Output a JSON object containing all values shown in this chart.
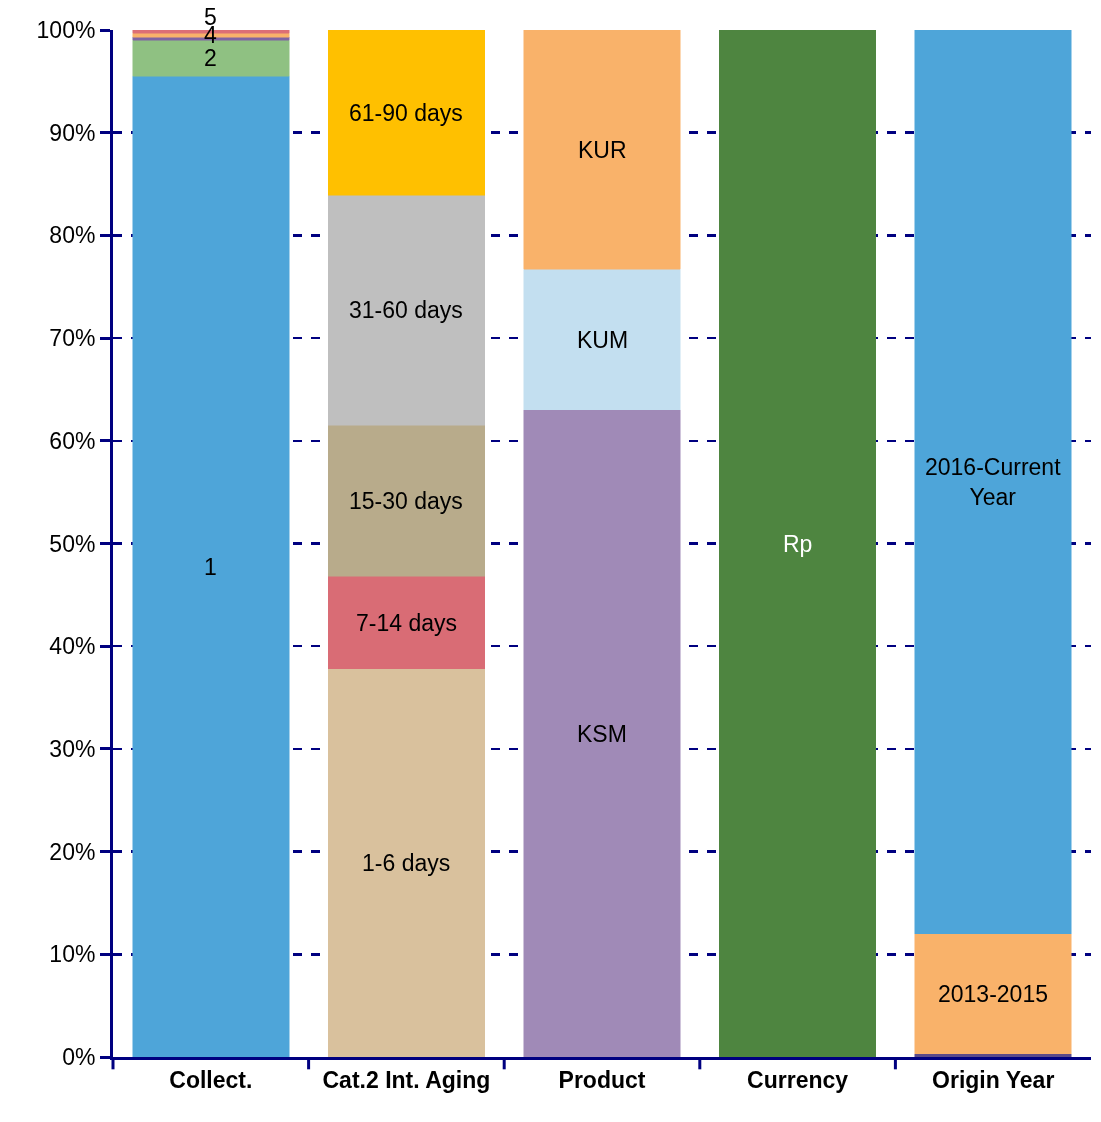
{
  "chart_data": {
    "type": "bar",
    "stacked": true,
    "categories": [
      "Collect.",
      "Cat.2 Int. Aging",
      "Product",
      "Currency",
      "Origin Year"
    ],
    "series": [
      {
        "name": "1",
        "color": "#4ea5d9",
        "values": [
          95.5,
          null,
          null,
          null,
          null
        ]
      },
      {
        "name": "2",
        "color": "#8fc182",
        "values": [
          3.5,
          null,
          null,
          null,
          null
        ]
      },
      {
        "color": "#8064a2",
        "values": [
          0.3,
          null,
          null,
          null,
          null
        ]
      },
      {
        "name": "4",
        "color": "#f9b26a",
        "values": [
          0.4,
          null,
          null,
          null,
          null
        ]
      },
      {
        "name": "5",
        "color": "#dc6f76",
        "values": [
          0.3,
          null,
          null,
          null,
          null
        ]
      },
      {
        "name": "1-6 days",
        "color": "#d9c19d",
        "values": [
          null,
          37.8,
          null,
          null,
          null
        ]
      },
      {
        "name": "7-14 days",
        "color": "#d96c75",
        "values": [
          null,
          9.0,
          null,
          null,
          null
        ]
      },
      {
        "name": "15-30 days",
        "color": "#b8ab8b",
        "values": [
          null,
          14.7,
          null,
          null,
          null
        ]
      },
      {
        "name": "31-60 days",
        "color": "#bfbfbf",
        "values": [
          null,
          22.4,
          null,
          null,
          null
        ]
      },
      {
        "name": "61-90 days",
        "color": "#ffc000",
        "values": [
          null,
          16.1,
          null,
          null,
          null
        ]
      },
      {
        "name": "KSM",
        "color": "#a08ab7",
        "values": [
          null,
          null,
          63.0,
          null,
          null
        ]
      },
      {
        "name": "KUM",
        "color": "#c3dff0",
        "values": [
          null,
          null,
          13.7,
          null,
          null
        ]
      },
      {
        "name": "KUR",
        "color": "#f9b26a",
        "values": [
          null,
          null,
          23.3,
          null,
          null
        ]
      },
      {
        "name": "Rp",
        "color": "#4e8540",
        "values": [
          null,
          null,
          null,
          100,
          null
        ]
      },
      {
        "color": "#5b4b8a",
        "values": [
          null,
          null,
          null,
          null,
          0.3
        ]
      },
      {
        "name": "2013-2015",
        "color": "#f9b26a",
        "values": [
          null,
          null,
          null,
          null,
          11.7
        ]
      },
      {
        "name": "2016-Current Year",
        "color": "#4ea5d9",
        "values": [
          null,
          null,
          null,
          null,
          88.0
        ]
      }
    ],
    "ylim": [
      0,
      100
    ],
    "yticks": [
      {
        "value": 0,
        "label": "0%"
      },
      {
        "value": 10,
        "label": "10%"
      },
      {
        "value": 20,
        "label": "20%"
      },
      {
        "value": 30,
        "label": "30%"
      },
      {
        "value": 40,
        "label": "40%"
      },
      {
        "value": 50,
        "label": "50%"
      },
      {
        "value": 60,
        "label": "60%"
      },
      {
        "value": 70,
        "label": "70%"
      },
      {
        "value": 80,
        "label": "80%"
      },
      {
        "value": 90,
        "label": "90%"
      },
      {
        "value": 100,
        "label": "100%"
      }
    ],
    "grid": "y",
    "line_style": "dashed",
    "legend": false
  }
}
